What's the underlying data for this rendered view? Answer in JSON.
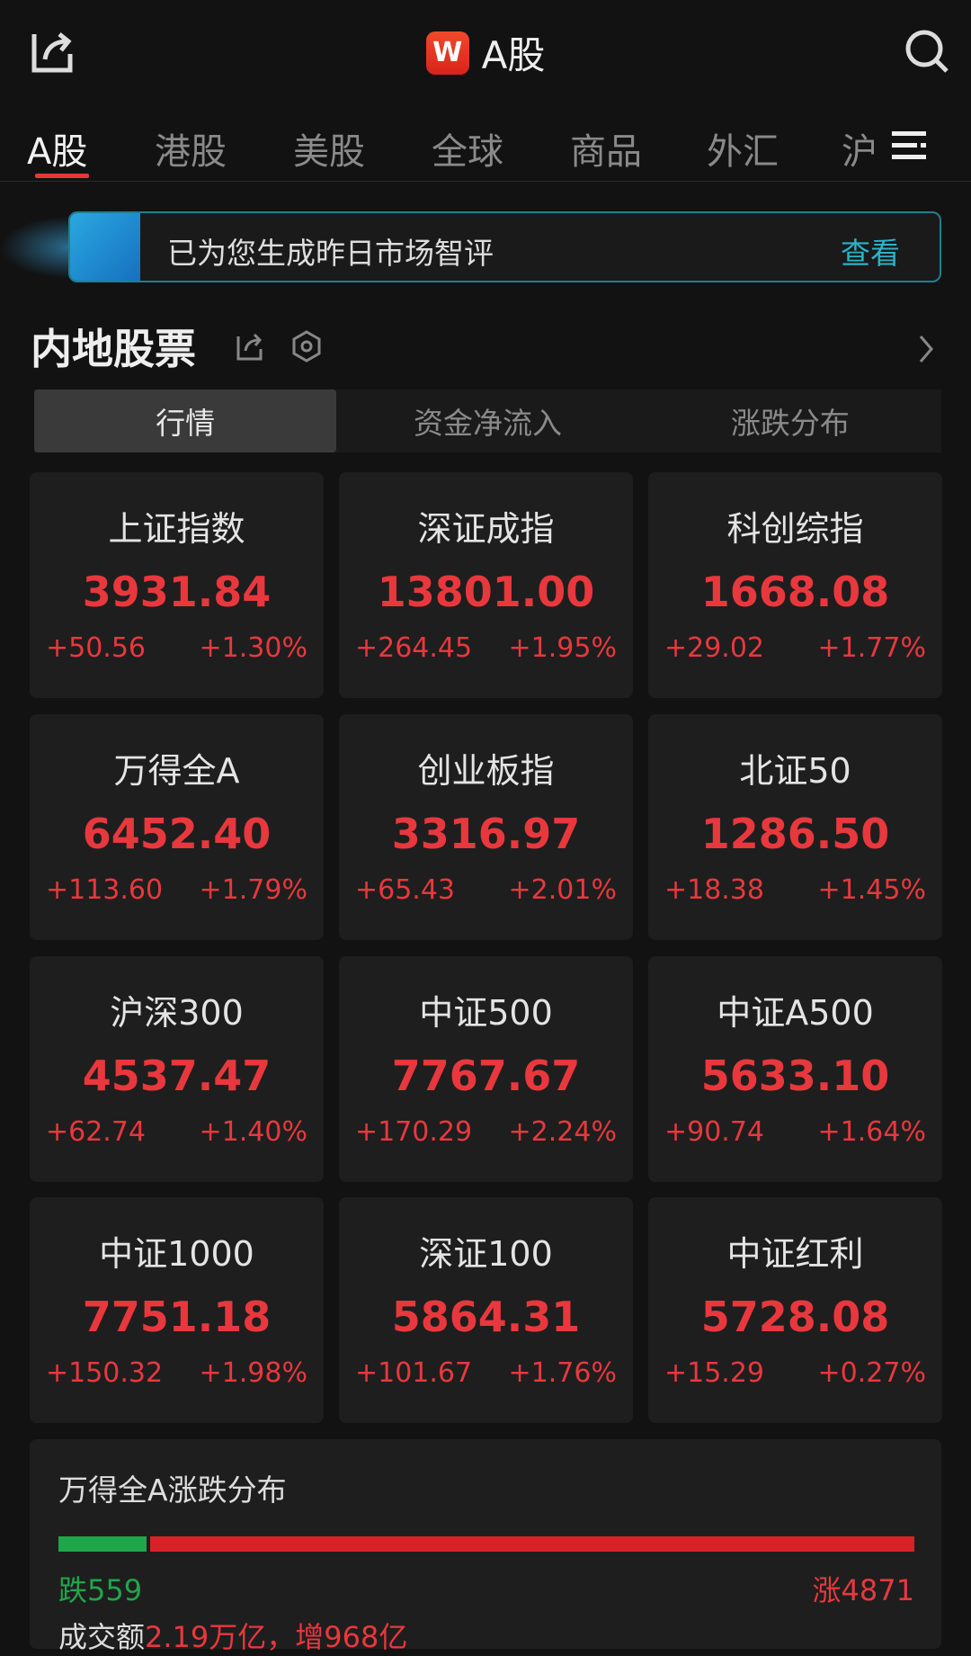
{
  "header": {
    "title": "A股",
    "logo_text": "W",
    "share_icon": "share-icon",
    "search_icon": "search-icon"
  },
  "tabs": [
    "A股",
    "港股",
    "美股",
    "全球",
    "商品",
    "外汇",
    "沪"
  ],
  "banner": {
    "text": "已为您生成昨日市场智评",
    "action": "查看"
  },
  "section": {
    "title": "内地股票",
    "subtabs": [
      "行情",
      "资金净流入",
      "涨跌分布"
    ]
  },
  "colors": {
    "up": "#e8383d",
    "down": "#1fa64a",
    "accent": "#2bb3c8"
  },
  "indices": [
    {
      "name": "上证指数",
      "value": "3931.84",
      "change": "+50.56",
      "pct": "+1.30%"
    },
    {
      "name": "深证成指",
      "value": "13801.00",
      "change": "+264.45",
      "pct": "+1.95%"
    },
    {
      "name": "科创综指",
      "value": "1668.08",
      "change": "+29.02",
      "pct": "+1.77%"
    },
    {
      "name": "万得全A",
      "value": "6452.40",
      "change": "+113.60",
      "pct": "+1.79%"
    },
    {
      "name": "创业板指",
      "value": "3316.97",
      "change": "+65.43",
      "pct": "+2.01%"
    },
    {
      "name": "北证50",
      "value": "1286.50",
      "change": "+18.38",
      "pct": "+1.45%"
    },
    {
      "name": "沪深300",
      "value": "4537.47",
      "change": "+62.74",
      "pct": "+1.40%"
    },
    {
      "name": "中证500",
      "value": "7767.67",
      "change": "+170.29",
      "pct": "+2.24%"
    },
    {
      "name": "中证A500",
      "value": "5633.10",
      "change": "+90.74",
      "pct": "+1.64%"
    },
    {
      "name": "中证1000",
      "value": "7751.18",
      "change": "+150.32",
      "pct": "+1.98%"
    },
    {
      "name": "深证100",
      "value": "5864.31",
      "change": "+101.67",
      "pct": "+1.76%"
    },
    {
      "name": "中证红利",
      "value": "5728.08",
      "change": "+15.29",
      "pct": "+0.27%"
    }
  ],
  "distribution": {
    "title": "万得全A涨跌分布",
    "fall_label": "跌559",
    "rise_label": "涨4871",
    "fall": 559,
    "rise": 4871,
    "turnover_label": "成交额",
    "turnover_value": "2.19万亿，增968亿"
  }
}
